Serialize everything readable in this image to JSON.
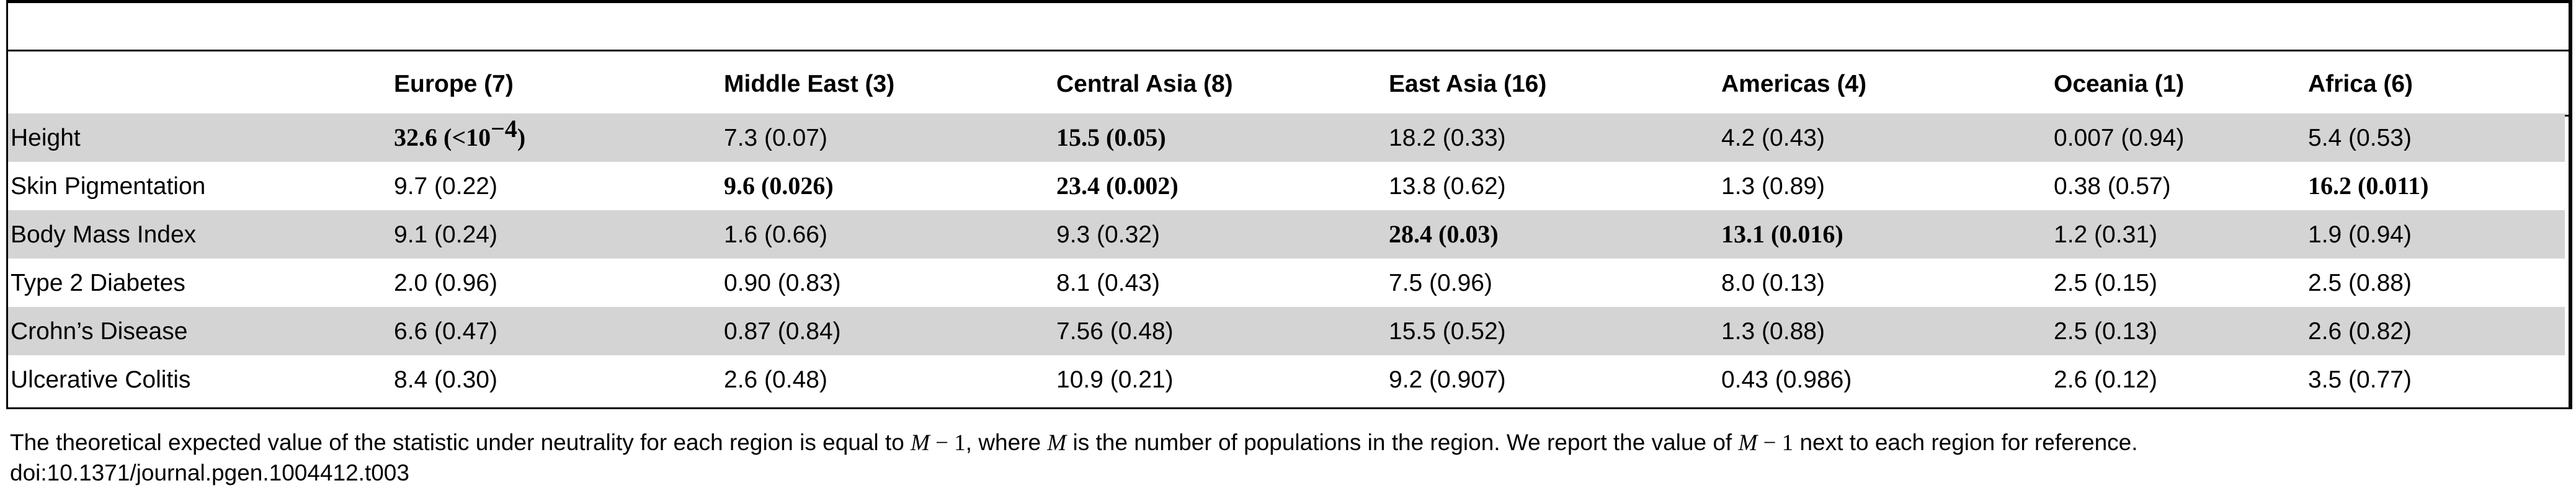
{
  "table": {
    "columns": [
      "",
      "Europe (7)",
      "Middle East (3)",
      "Central Asia (8)",
      "East Asia (16)",
      "Americas (4)",
      "Oceania (1)",
      "Africa (6)"
    ],
    "rows": [
      {
        "trait": "Height",
        "cells": [
          {
            "text": "32.6 (<10",
            "sup": "−4",
            "suffix": ")",
            "bold": true
          },
          {
            "text": "7.3 (0.07)",
            "bold": false
          },
          {
            "text": "15.5 (0.05)",
            "bold": true
          },
          {
            "text": "18.2 (0.33)",
            "bold": false
          },
          {
            "text": "4.2 (0.43)",
            "bold": false
          },
          {
            "text": "0.007 (0.94)",
            "bold": false
          },
          {
            "text": "5.4 (0.53)",
            "bold": false
          }
        ]
      },
      {
        "trait": "Skin Pigmentation",
        "cells": [
          {
            "text": "9.7 (0.22)",
            "bold": false
          },
          {
            "text": "9.6 (0.026)",
            "bold": true
          },
          {
            "text": "23.4 (0.002)",
            "bold": true
          },
          {
            "text": "13.8 (0.62)",
            "bold": false
          },
          {
            "text": "1.3 (0.89)",
            "bold": false
          },
          {
            "text": "0.38 (0.57)",
            "bold": false
          },
          {
            "text": "16.2 (0.011)",
            "bold": true
          }
        ]
      },
      {
        "trait": "Body Mass Index",
        "cells": [
          {
            "text": "9.1 (0.24)",
            "bold": false
          },
          {
            "text": "1.6 (0.66)",
            "bold": false
          },
          {
            "text": "9.3 (0.32)",
            "bold": false
          },
          {
            "text": "28.4 (0.03)",
            "bold": true
          },
          {
            "text": "13.1 (0.016)",
            "bold": true
          },
          {
            "text": "1.2 (0.31)",
            "bold": false
          },
          {
            "text": "1.9 (0.94)",
            "bold": false
          }
        ]
      },
      {
        "trait": "Type 2 Diabetes",
        "cells": [
          {
            "text": "2.0 (0.96)",
            "bold": false
          },
          {
            "text": "0.90 (0.83)",
            "bold": false
          },
          {
            "text": "8.1 (0.43)",
            "bold": false
          },
          {
            "text": "7.5 (0.96)",
            "bold": false
          },
          {
            "text": "8.0 (0.13)",
            "bold": false
          },
          {
            "text": "2.5 (0.15)",
            "bold": false
          },
          {
            "text": "2.5 (0.88)",
            "bold": false
          }
        ]
      },
      {
        "trait": "Crohn’s Disease",
        "cells": [
          {
            "text": "6.6 (0.47)",
            "bold": false
          },
          {
            "text": "0.87 (0.84)",
            "bold": false
          },
          {
            "text": "7.56 (0.48)",
            "bold": false
          },
          {
            "text": "15.5 (0.52)",
            "bold": false
          },
          {
            "text": "1.3 (0.88)",
            "bold": false
          },
          {
            "text": "2.5 (0.13)",
            "bold": false
          },
          {
            "text": "2.6 (0.82)",
            "bold": false
          }
        ]
      },
      {
        "trait": "Ulcerative Colitis",
        "cells": [
          {
            "text": "8.4 (0.30)",
            "bold": false
          },
          {
            "text": "2.6 (0.48)",
            "bold": false
          },
          {
            "text": "10.9 (0.21)",
            "bold": false
          },
          {
            "text": "9.2 (0.907)",
            "bold": false
          },
          {
            "text": "0.43 (0.986)",
            "bold": false
          },
          {
            "text": "2.6 (0.12)",
            "bold": false
          },
          {
            "text": "3.5 (0.77)",
            "bold": false
          }
        ]
      }
    ],
    "row_shading": [
      "#d4d4d4",
      "#ffffff"
    ]
  },
  "footnote": {
    "part1": "The theoretical expected value of the statistic under neutrality for each region is equal to ",
    "expr_var": "M",
    "expr_op": " − 1",
    "part2": ", where ",
    "m_var": "M",
    "part3": " is the number of populations in the region. We report the value of ",
    "expr2_var": "M",
    "expr2_op": " − 1",
    "part4": " next to each region for reference.",
    "doi": "doi:10.1371/journal.pgen.1004412.t003"
  }
}
